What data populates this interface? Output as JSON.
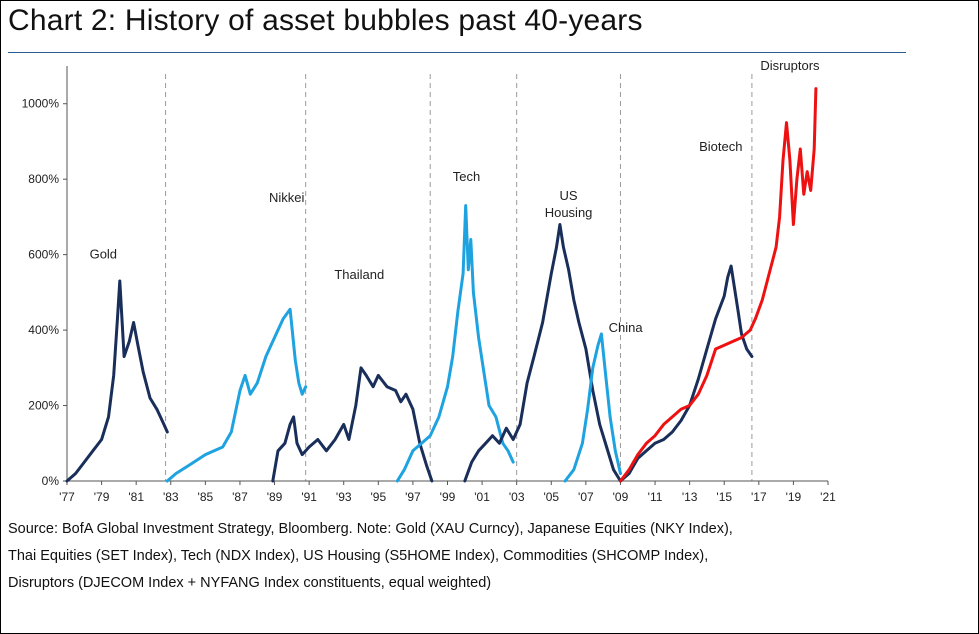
{
  "chart_data": {
    "type": "line",
    "title": "Chart 2: History of asset bubbles past 40-years",
    "xlabel": "",
    "ylabel": "",
    "x_ticks": [
      "'77",
      "'79",
      "'81",
      "'83",
      "'85",
      "'87",
      "'89",
      "'91",
      "'93",
      "'95",
      "'97",
      "'99",
      "'01",
      "'03",
      "'05",
      "'07",
      "'09",
      "'11",
      "'13",
      "'15",
      "'17",
      "'19",
      "'21"
    ],
    "x_range": [
      1977,
      2021
    ],
    "y_ticks": [
      "0%",
      "200%",
      "400%",
      "600%",
      "800%",
      "1000%"
    ],
    "ylim": [
      0,
      1100
    ],
    "grid": false,
    "legend": "none",
    "dividers": [
      1982.7,
      1990.8,
      1998.0,
      2003.0,
      2009.0,
      2016.6
    ],
    "colors": {
      "dark": "#1a2e5a",
      "light": "#1ea3e0",
      "red": "#ee1111"
    },
    "series": [
      {
        "name": "Gold",
        "color": "#1a2e5a",
        "x": [
          1977,
          1977.5,
          1978,
          1978.5,
          1979,
          1979.4,
          1979.7,
          1979.9,
          1980.05,
          1980.3,
          1980.6,
          1980.85,
          1981.1,
          1981.4,
          1981.8,
          1982.2,
          1982.6,
          1982.8
        ],
        "y": [
          0,
          20,
          50,
          80,
          110,
          170,
          280,
          420,
          530,
          330,
          370,
          420,
          360,
          290,
          220,
          190,
          150,
          130
        ]
      },
      {
        "name": "Nikkei",
        "color": "#1ea3e0",
        "x": [
          1982.8,
          1983.3,
          1984,
          1985,
          1986,
          1986.5,
          1987,
          1987.3,
          1987.6,
          1988,
          1988.5,
          1989,
          1989.5,
          1989.9,
          1990.2,
          1990.4,
          1990.6,
          1990.8
        ],
        "y": [
          0,
          20,
          40,
          70,
          90,
          130,
          240,
          280,
          230,
          260,
          330,
          380,
          430,
          455,
          320,
          260,
          230,
          250
        ]
      },
      {
        "name": "Thailand",
        "color": "#1a2e5a",
        "x": [
          1988.9,
          1989.2,
          1989.6,
          1989.9,
          1990.1,
          1990.3,
          1990.6,
          1991,
          1991.5,
          1992,
          1992.5,
          1993,
          1993.3,
          1993.7,
          1994,
          1994.3,
          1994.7,
          1995,
          1995.5,
          1996,
          1996.3,
          1996.6,
          1997,
          1997.4,
          1997.8,
          1998.1
        ],
        "y": [
          0,
          80,
          100,
          150,
          170,
          100,
          70,
          90,
          110,
          80,
          110,
          150,
          110,
          200,
          300,
          280,
          250,
          280,
          250,
          240,
          210,
          230,
          190,
          100,
          40,
          0
        ]
      },
      {
        "name": "Tech",
        "color": "#1ea3e0",
        "x": [
          1996.1,
          1996.5,
          1997,
          1997.5,
          1998,
          1998.5,
          1999,
          1999.3,
          1999.6,
          1999.9,
          2000.05,
          2000.2,
          2000.35,
          2000.5,
          2000.8,
          2001.1,
          2001.4,
          2001.8,
          2002.2,
          2002.5,
          2002.8
        ],
        "y": [
          0,
          30,
          80,
          100,
          120,
          170,
          250,
          330,
          450,
          550,
          730,
          560,
          640,
          500,
          380,
          290,
          200,
          170,
          100,
          80,
          50
        ]
      },
      {
        "name": "US Housing",
        "color": "#1a2e5a",
        "x": [
          2000,
          2000.4,
          2000.8,
          2001.2,
          2001.6,
          2002,
          2002.4,
          2002.8,
          2003.2,
          2003.6,
          2004,
          2004.5,
          2005,
          2005.3,
          2005.5,
          2005.7,
          2006,
          2006.3,
          2006.6,
          2007,
          2007.4,
          2007.8,
          2008.2,
          2008.6,
          2009
        ],
        "y": [
          0,
          50,
          80,
          100,
          120,
          100,
          140,
          110,
          150,
          260,
          330,
          420,
          550,
          620,
          680,
          620,
          560,
          480,
          420,
          350,
          240,
          150,
          90,
          30,
          0
        ]
      },
      {
        "name": "China",
        "color": "#1ea3e0",
        "x": [
          2005.8,
          2006.3,
          2006.8,
          2007.1,
          2007.4,
          2007.7,
          2007.9,
          2008.1,
          2008.4,
          2008.7,
          2009
        ],
        "y": [
          0,
          30,
          100,
          190,
          300,
          360,
          390,
          300,
          170,
          80,
          20
        ]
      },
      {
        "name": "Biotech",
        "color": "#1a2e5a",
        "x": [
          2009,
          2009.5,
          2010,
          2010.5,
          2011,
          2011.5,
          2012,
          2012.5,
          2013,
          2013.5,
          2014,
          2014.5,
          2015,
          2015.2,
          2015.4,
          2015.6,
          2015.8,
          2016,
          2016.3,
          2016.6
        ],
        "y": [
          0,
          20,
          60,
          80,
          100,
          110,
          130,
          160,
          200,
          270,
          350,
          430,
          490,
          540,
          570,
          510,
          450,
          390,
          350,
          330
        ]
      },
      {
        "name": "Disruptors",
        "color": "#ee1111",
        "x": [
          2009,
          2009.5,
          2010,
          2010.5,
          2011,
          2011.5,
          2012,
          2012.5,
          2013,
          2013.5,
          2014,
          2014.5,
          2015,
          2015.5,
          2016,
          2016.5,
          2016.8,
          2017.2,
          2017.6,
          2018,
          2018.2,
          2018.4,
          2018.6,
          2018.8,
          2019,
          2019.2,
          2019.4,
          2019.6,
          2019.8,
          2020,
          2020.2,
          2020.3
        ],
        "y": [
          0,
          30,
          70,
          100,
          120,
          150,
          170,
          190,
          200,
          230,
          280,
          350,
          360,
          370,
          380,
          400,
          430,
          480,
          550,
          620,
          700,
          850,
          950,
          850,
          680,
          800,
          880,
          760,
          820,
          770,
          880,
          1040
        ]
      }
    ],
    "annotations": [
      {
        "text": "Gold",
        "x": 1979.1,
        "y": 590
      },
      {
        "text": "Nikkei",
        "x": 1989.7,
        "y": 740
      },
      {
        "text": "Thailand",
        "x": 1993.9,
        "y": 535
      },
      {
        "text": "Tech",
        "x": 2000.1,
        "y": 795
      },
      {
        "text": "US",
        "x": 2006.0,
        "y": 745
      },
      {
        "text": "Housing",
        "x": 2006.0,
        "y": 700
      },
      {
        "text": "China",
        "x": 2009.3,
        "y": 395
      },
      {
        "text": "Biotech",
        "x": 2014.8,
        "y": 875
      },
      {
        "text": "Disruptors",
        "x": 2018.8,
        "y": 1090
      }
    ],
    "source_lines": [
      "Source: BofA Global Investment Strategy, Bloomberg. Note: Gold (XAU Curncy), Japanese Equities (NKY Index),",
      "Thai Equities (SET Index), Tech (NDX Index), US Housing (S5HOME Index), Commodities (SHCOMP Index),",
      "Disruptors (DJECOM Index + NYFANG Index constituents, equal weighted)"
    ]
  }
}
